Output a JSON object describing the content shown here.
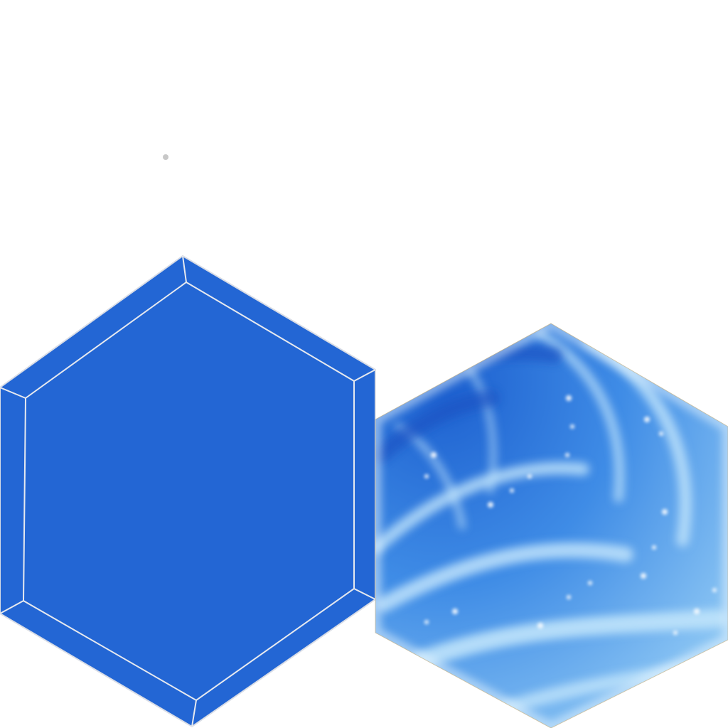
{
  "sheet": {
    "background": "#ffffff",
    "tiles": [
      {
        "name": "solid-blue-hex-tile",
        "style": "beveled flat fill",
        "fill": "#2366d4",
        "edge": "#d9dde6"
      },
      {
        "name": "water-swirl-hex-tile",
        "style": "swirling water texture with foam speckles",
        "deep": "#1c5fcf",
        "mid": "#3f8ce6",
        "light": "#9fd4f7",
        "foam": "#ffffff"
      }
    ],
    "stray_mark_color": "#c8c8c8"
  }
}
